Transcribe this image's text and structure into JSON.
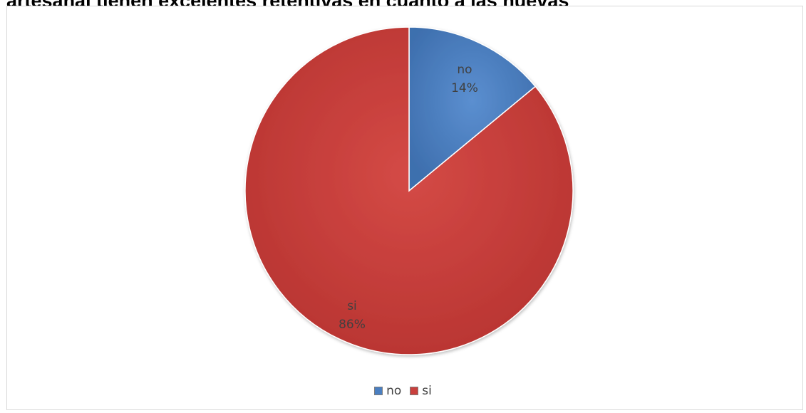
{
  "chart_data": {
    "type": "pie",
    "title": "artesanal tienen excelentes retentivas en cuanto a las nuevas",
    "categories": [
      "no",
      "si"
    ],
    "values": [
      14,
      86
    ],
    "labels": [
      {
        "category": "no",
        "percent": "14%"
      },
      {
        "category": "si",
        "percent": "86%"
      }
    ],
    "colors": [
      "#4a7fc1",
      "#c9403d"
    ],
    "legend": {
      "position": "bottom",
      "entries": [
        "no",
        "si"
      ]
    }
  }
}
